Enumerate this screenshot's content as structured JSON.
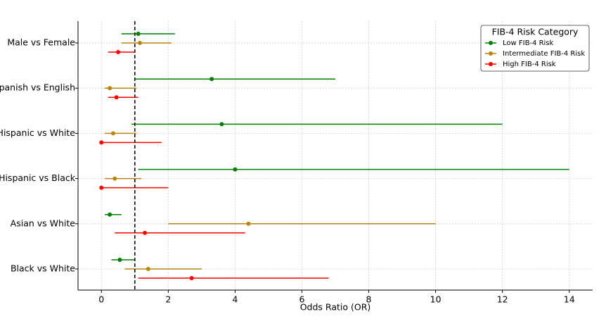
{
  "chart_data": {
    "type": "forest",
    "xlabel": "Odds Ratio (OR)",
    "categories": [
      "Male vs Female",
      "Spanish vs English",
      "Hispanic vs White",
      "Hispanic vs Black",
      "Asian vs White",
      "Black vs White"
    ],
    "series": [
      {
        "name": "Low FIB-4 Risk",
        "color": "#008000",
        "values": [
          1.1,
          3.3,
          3.6,
          4.0,
          0.25,
          0.55
        ],
        "lower": [
          0.6,
          1.0,
          0.9,
          1.1,
          0.1,
          0.3
        ],
        "upper": [
          2.2,
          7.0,
          12.0,
          14.0,
          0.6,
          1.0
        ]
      },
      {
        "name": "Intermediate FIB-4 Risk",
        "color": "#b8860b",
        "values": [
          1.15,
          0.25,
          0.35,
          0.4,
          4.4,
          1.4
        ],
        "lower": [
          0.6,
          0.1,
          0.1,
          0.1,
          2.0,
          0.7
        ],
        "upper": [
          2.1,
          1.05,
          1.05,
          1.2,
          10.0,
          3.0
        ]
      },
      {
        "name": "High FIB-4 Risk",
        "color": "#ff0000",
        "values": [
          0.5,
          0.45,
          0.0,
          0.0,
          1.3,
          2.7
        ],
        "lower": [
          0.2,
          0.2,
          0.0,
          0.0,
          0.4,
          1.1
        ],
        "upper": [
          1.0,
          1.1,
          1.8,
          2.0,
          4.3,
          6.8
        ]
      }
    ],
    "reference_line": 1,
    "xlim": [
      -0.7,
      14.7
    ],
    "xticks": [
      0,
      2,
      4,
      6,
      8,
      10,
      12,
      14
    ],
    "grid": true,
    "legend_title": "FIB-4 Risk Category",
    "legend_position": "upper right"
  }
}
